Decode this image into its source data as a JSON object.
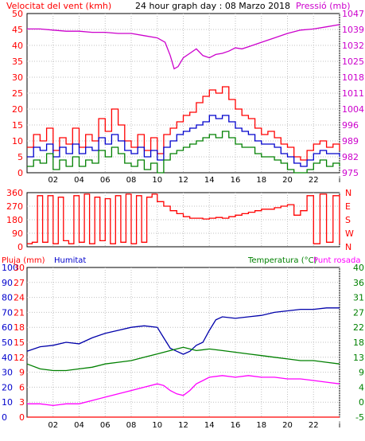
{
  "header": {
    "wind_title": "Velocitat del vent (kmh)",
    "day_title": "24 hour graph day : 08 Marzo 2018",
    "pressure_title": "Pressió (mb)"
  },
  "bottom_header": {
    "rain_title": "Pluja (mm)",
    "humidity_title": "Humitat",
    "temp_title": "Temperatura (°C)",
    "dew_title": "Punt rosada"
  },
  "colors": {
    "wind_axis": "#ff0000",
    "pressure": "#cc00cc",
    "gust": "#ff0000",
    "wind_avg": "#0000cc",
    "wind_low": "#008000",
    "direction": "#ff0000",
    "humidity": "#0000aa",
    "temperature": "#008000",
    "dewpoint": "#ff00ff",
    "rain": "#ff0000",
    "temp_axis": "#008000",
    "humidity_axis": "#0000cc",
    "frame": "#000000",
    "grid": "#c0c0c0"
  },
  "chart_data": [
    {
      "type": "line",
      "name": "wind_pressure",
      "x_ticks": [
        "02",
        "04",
        "06",
        "08",
        "10",
        "12",
        "14",
        "16",
        "18",
        "20",
        "22",
        "i"
      ],
      "y_left_ticks": [
        "0",
        "5",
        "10",
        "15",
        "20",
        "25",
        "30",
        "35",
        "40",
        "45",
        "50"
      ],
      "y_left_range": [
        0,
        50
      ],
      "y_right_ticks": [
        "975",
        "982",
        "989",
        "996",
        "1004",
        "1011",
        "1018",
        "1025",
        "1032",
        "1039",
        "1047"
      ],
      "y_right_range": [
        975,
        1047
      ],
      "x_range": [
        0,
        24
      ],
      "series": [
        {
          "name": "Pressió",
          "axis": "right",
          "x": [
            0,
            1,
            2,
            3,
            4,
            5,
            6,
            7,
            8,
            9,
            10,
            10.6,
            11,
            11.3,
            11.6,
            12,
            12.5,
            13,
            13.5,
            14,
            14.5,
            15,
            15.5,
            16,
            16.5,
            17,
            18,
            19,
            20,
            21,
            22,
            23,
            24
          ],
          "y": [
            1040,
            1040,
            1039.5,
            1039,
            1039,
            1038.5,
            1038.5,
            1038,
            1038,
            1037,
            1036,
            1034,
            1028,
            1022,
            1023,
            1027,
            1029,
            1031,
            1028,
            1027,
            1028.5,
            1029,
            1030,
            1031.5,
            1031,
            1032,
            1034,
            1036,
            1038,
            1039.5,
            1040,
            1041,
            1042
          ]
        },
        {
          "name": "gust",
          "axis": "left",
          "x": [
            0,
            0.5,
            1,
            1.5,
            2,
            2.5,
            3,
            3.5,
            4,
            4.5,
            5,
            5.5,
            6,
            6.5,
            7,
            7.5,
            8,
            8.5,
            9,
            9.5,
            10,
            10.5,
            11,
            11.5,
            12,
            12.5,
            13,
            13.5,
            14,
            14.5,
            15,
            15.5,
            16,
            16.5,
            17,
            17.5,
            18,
            18.5,
            19,
            19.5,
            20,
            20.5,
            21,
            21.5,
            22,
            22.5,
            23,
            23.5,
            24
          ],
          "y": [
            8,
            12,
            10,
            14,
            7,
            11,
            9,
            14,
            8,
            12,
            10,
            17,
            13,
            20,
            15,
            10,
            8,
            12,
            7,
            11,
            6,
            12,
            14,
            16,
            18,
            19,
            22,
            24,
            26,
            25,
            27,
            23,
            20,
            18,
            17,
            14,
            12,
            13,
            11,
            9,
            8,
            5,
            4,
            7,
            9,
            10,
            8,
            9,
            7
          ]
        },
        {
          "name": "avg",
          "axis": "left",
          "x": [
            0,
            0.5,
            1,
            1.5,
            2,
            2.5,
            3,
            3.5,
            4,
            4.5,
            5,
            5.5,
            6,
            6.5,
            7,
            7.5,
            8,
            8.5,
            9,
            9.5,
            10,
            10.5,
            11,
            11.5,
            12,
            12.5,
            13,
            13.5,
            14,
            14.5,
            15,
            15.5,
            16,
            16.5,
            17,
            17.5,
            18,
            18.5,
            19,
            19.5,
            20,
            20.5,
            21,
            21.5,
            22,
            22.5,
            23,
            23.5,
            24
          ],
          "y": [
            5,
            8,
            7,
            9,
            5,
            8,
            6,
            9,
            6,
            8,
            7,
            11,
            9,
            12,
            10,
            7,
            6,
            8,
            5,
            7,
            4,
            8,
            10,
            12,
            13,
            14,
            15,
            16,
            18,
            17,
            18,
            16,
            14,
            13,
            12,
            10,
            9,
            9,
            8,
            6,
            5,
            3,
            2,
            4,
            6,
            7,
            6,
            6,
            5
          ]
        },
        {
          "name": "low",
          "axis": "left",
          "x": [
            0,
            0.5,
            1,
            1.5,
            2,
            2.5,
            3,
            3.5,
            4,
            4.5,
            5,
            5.5,
            6,
            6.5,
            7,
            7.5,
            8,
            8.5,
            9,
            9.5,
            10,
            10.5,
            11,
            11.5,
            12,
            12.5,
            13,
            13.5,
            14,
            14.5,
            15,
            15.5,
            16,
            16.5,
            17,
            17.5,
            18,
            18.5,
            19,
            19.5,
            20,
            20.5,
            21,
            21.5,
            22,
            22.5,
            23,
            23.5,
            24
          ],
          "y": [
            2,
            4,
            3,
            6,
            1,
            4,
            2,
            5,
            2,
            4,
            3,
            7,
            5,
            8,
            6,
            3,
            2,
            4,
            1,
            3,
            0,
            4,
            6,
            7,
            8,
            9,
            10,
            11,
            12,
            11,
            13,
            11,
            9,
            8,
            8,
            6,
            5,
            5,
            4,
            3,
            1,
            0,
            0,
            1,
            3,
            4,
            2,
            3,
            2
          ]
        }
      ]
    },
    {
      "type": "line",
      "name": "wind_direction",
      "x_range": [
        0,
        24
      ],
      "y_left_ticks": [
        "0",
        "90",
        "180",
        "270",
        "360"
      ],
      "y_left_range": [
        0,
        360
      ],
      "y_right_ticks": [
        "N",
        "W",
        "S",
        "E",
        "N"
      ],
      "series": [
        {
          "name": "direction",
          "x": [
            0,
            0.4,
            0.8,
            1.2,
            1.6,
            2,
            2.4,
            2.8,
            3.2,
            3.6,
            4,
            4.4,
            4.8,
            5.2,
            5.6,
            6,
            6.4,
            6.8,
            7.2,
            7.6,
            8,
            8.4,
            8.8,
            9.2,
            9.6,
            10,
            10.5,
            11,
            11.5,
            12,
            12.5,
            13,
            13.5,
            14,
            14.5,
            15,
            15.5,
            16,
            16.5,
            17,
            17.5,
            18,
            18.5,
            19,
            19.5,
            20,
            20.5,
            21,
            21.5,
            22,
            22.5,
            23,
            23.5,
            24
          ],
          "y": [
            20,
            30,
            340,
            30,
            340,
            20,
            330,
            40,
            20,
            340,
            30,
            350,
            20,
            330,
            40,
            320,
            20,
            340,
            30,
            350,
            20,
            340,
            30,
            330,
            350,
            300,
            270,
            240,
            220,
            200,
            190,
            190,
            185,
            190,
            195,
            190,
            200,
            210,
            220,
            230,
            240,
            250,
            250,
            260,
            270,
            280,
            210,
            240,
            340,
            20,
            350,
            30,
            340,
            20
          ]
        }
      ]
    },
    {
      "type": "line",
      "name": "temp_humidity",
      "x_ticks": [
        "02",
        "04",
        "06",
        "08",
        "10",
        "12",
        "14",
        "16",
        "18",
        "20",
        "22",
        "i"
      ],
      "x_range": [
        0,
        24
      ],
      "y_left_outer_ticks": [
        "0",
        "10",
        "20",
        "30",
        "40",
        "50",
        "60",
        "70",
        "80",
        "90",
        "100"
      ],
      "y_left_outer_range": [
        0,
        100
      ],
      "y_left_inner_ticks": [
        "0",
        "3",
        "6",
        "9",
        "12",
        "15",
        "18",
        "21",
        "24",
        "27",
        "30"
      ],
      "y_left_inner_range": [
        0,
        30
      ],
      "y_right_ticks": [
        "-5",
        "0",
        "4",
        "9",
        "13",
        "18",
        "22",
        "27",
        "31",
        "36",
        "40"
      ],
      "y_right_range": [
        -5,
        40
      ],
      "series": [
        {
          "name": "Humitat",
          "axis": "left_outer",
          "x": [
            0,
            1,
            2,
            3,
            4,
            5,
            6,
            7,
            8,
            9,
            10,
            10.5,
            11,
            11.5,
            12,
            12.5,
            13,
            13.5,
            14,
            14.5,
            15,
            16,
            17,
            18,
            19,
            20,
            21,
            22,
            23,
            24
          ],
          "y": [
            44,
            47,
            48,
            50,
            49,
            53,
            56,
            58,
            60,
            61,
            60,
            53,
            46,
            44,
            42,
            44,
            48,
            50,
            58,
            65,
            67,
            66,
            67,
            68,
            70,
            71,
            72,
            72,
            73,
            73
          ]
        },
        {
          "name": "Temperatura",
          "axis": "right",
          "x": [
            0,
            1,
            2,
            3,
            4,
            5,
            6,
            7,
            8,
            9,
            10,
            11,
            12,
            13,
            14,
            15,
            16,
            17,
            18,
            19,
            20,
            21,
            22,
            23,
            24
          ],
          "y": [
            11,
            9.5,
            9,
            9,
            9.5,
            10,
            11,
            11.5,
            12,
            13,
            14,
            15,
            16,
            15,
            15.5,
            15,
            14.5,
            14,
            13.5,
            13,
            12.5,
            12,
            12,
            11.5,
            11
          ]
        },
        {
          "name": "Punt rosada",
          "axis": "right",
          "x": [
            0,
            1,
            2,
            3,
            4,
            5,
            6,
            7,
            8,
            9,
            10,
            10.5,
            11,
            11.5,
            12,
            12.5,
            13,
            14,
            15,
            16,
            17,
            18,
            19,
            20,
            21,
            22,
            23,
            24
          ],
          "y": [
            -1,
            -1,
            -1.5,
            -1,
            -1,
            0,
            1,
            2,
            3,
            4,
            5,
            4.5,
            3,
            2,
            1.5,
            3,
            5,
            7,
            7.5,
            7,
            7.5,
            7,
            7,
            6.5,
            6.5,
            6,
            5.5,
            5
          ]
        },
        {
          "name": "Pluja",
          "axis": "left_inner",
          "x": [
            0,
            24
          ],
          "y": [
            0,
            0
          ]
        }
      ]
    }
  ]
}
